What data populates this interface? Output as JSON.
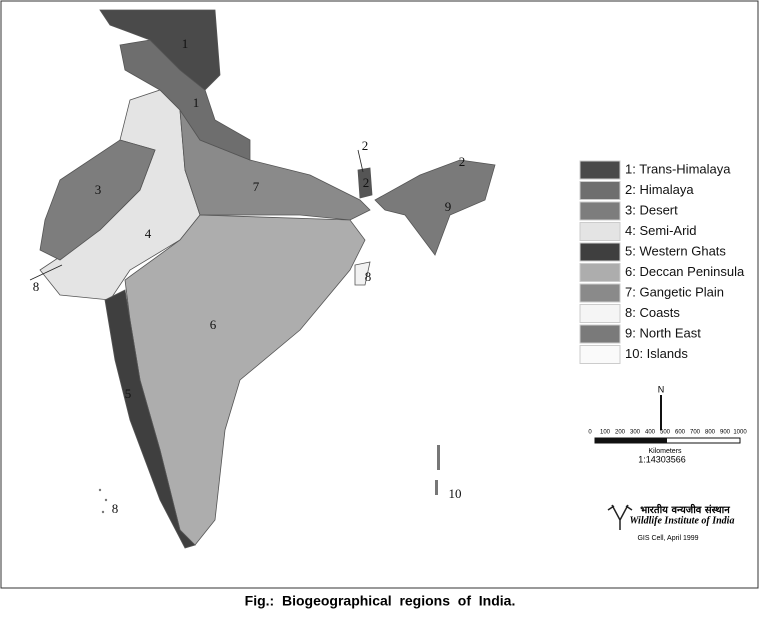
{
  "map": {
    "region_labels": [
      "1",
      "2",
      "1",
      "2",
      "2",
      "3",
      "4",
      "5",
      "6",
      "7",
      "8",
      "8",
      "8",
      "9",
      "10"
    ],
    "legend": [
      "1: Trans-Himalaya",
      "2: Himalaya",
      "3: Desert",
      "4: Semi-Arid",
      "5: Western Ghats",
      "6: Deccan Peninsula",
      "7: Gangetic Plain",
      "8: Coasts",
      "9: North East",
      "10: Islands"
    ],
    "north": "N",
    "scale_labels": [
      "0",
      "100",
      "200",
      "300",
      "400",
      "500",
      "600",
      "700",
      "800",
      "900",
      "1000"
    ],
    "scale_unit": "Kilometers",
    "scale_ratio": "1:14303566",
    "institute_hindi": "भारतीय वन्यजीव संस्थान",
    "institute": "Wildlife Institute of India",
    "credit": "GIS Cell, April 1999"
  },
  "caption": "Fig.:  Biogeographical  regions  of  India."
}
